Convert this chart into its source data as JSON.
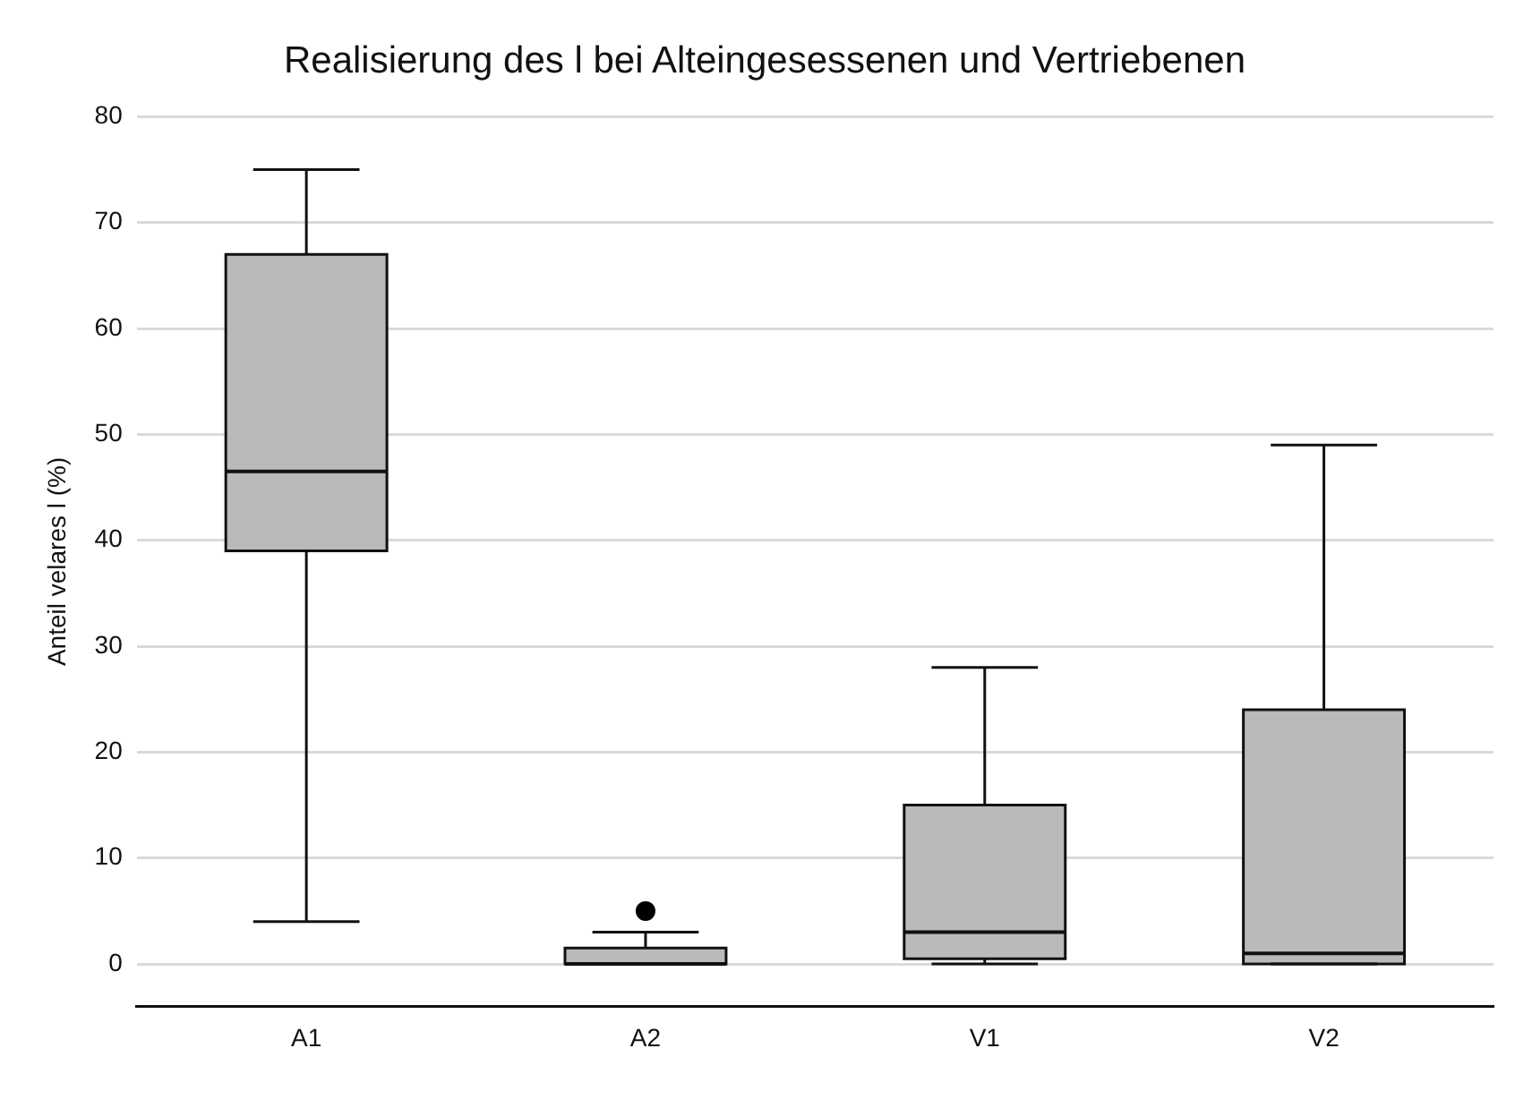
{
  "chart_data": {
    "type": "box",
    "title": "Realisierung des l bei Alteingesessenen und Vertriebenen",
    "ylabel": "Anteil velares l (%)",
    "categories": [
      "A1",
      "A2",
      "V1",
      "V2"
    ],
    "boxes": [
      {
        "low": 4,
        "q1": 39,
        "median": 46.5,
        "q3": 67,
        "high": 75
      },
      {
        "low": 0,
        "q1": 0,
        "median": 0,
        "q3": 1.5,
        "high": 3,
        "outliers": [
          5
        ]
      },
      {
        "low": 0,
        "q1": 0.5,
        "median": 3,
        "q3": 15,
        "high": 28
      },
      {
        "low": 0,
        "q1": 0,
        "median": 1,
        "q3": 24,
        "high": 49
      }
    ],
    "color": "#bababa",
    "ylim": [
      -4,
      80
    ],
    "yticks": [
      0,
      10,
      20,
      30,
      40,
      50,
      60,
      70,
      80
    ],
    "grid": "y",
    "legend": false
  }
}
